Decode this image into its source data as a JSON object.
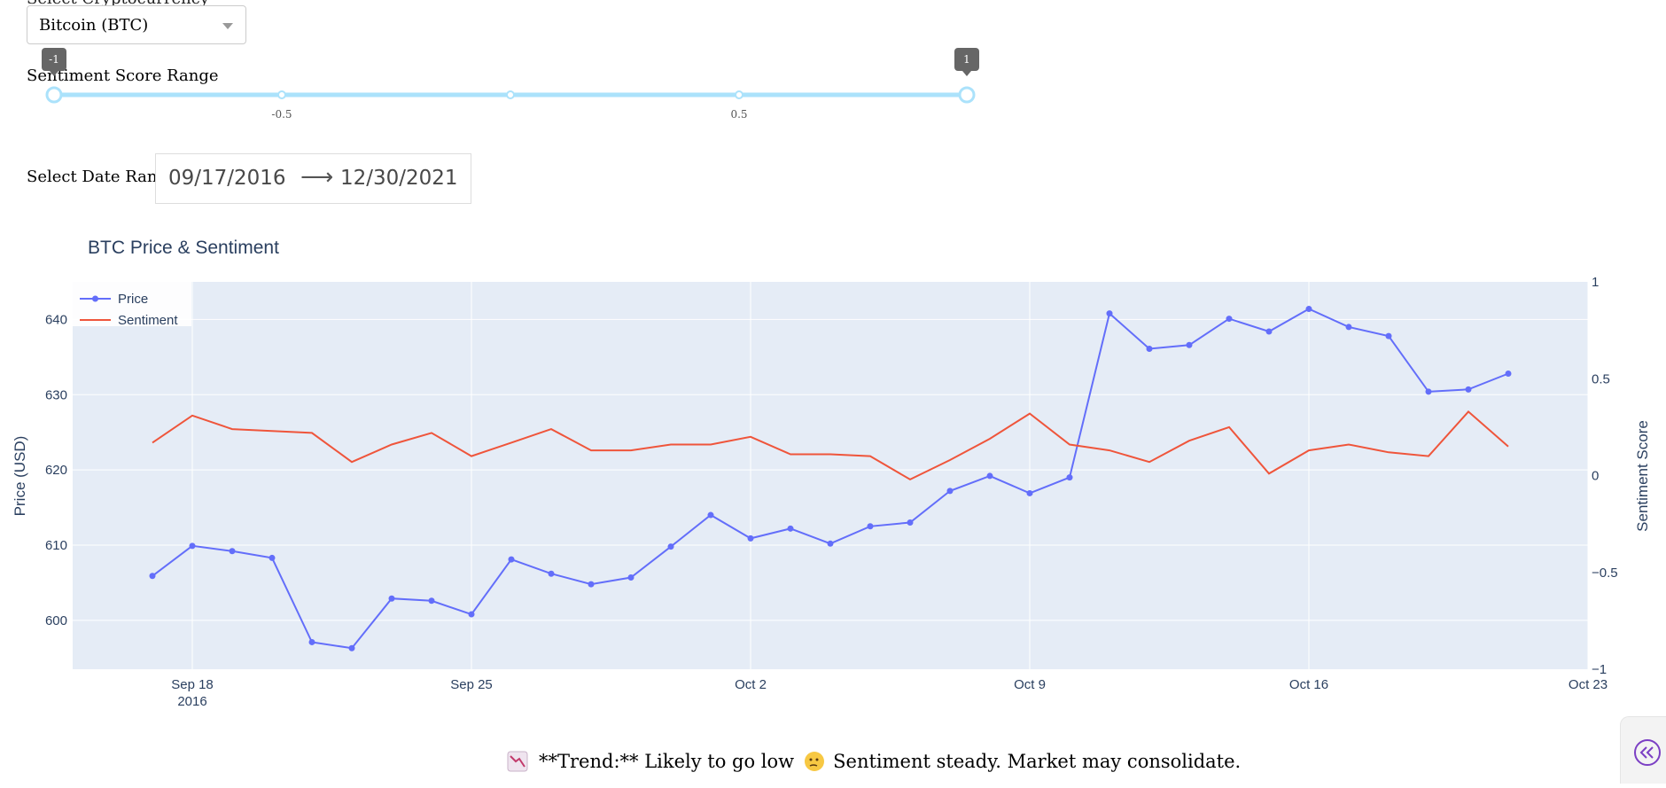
{
  "controls": {
    "crypto_label": "Select Cryptocurrency",
    "crypto_selected": "Bitcoin (BTC)",
    "sentiment_label": "Sentiment Score Range",
    "sentiment_range": {
      "min": -1,
      "max": 1,
      "low": -1,
      "high": 1
    },
    "slider_marks": [
      "-0.5",
      "0.5"
    ],
    "tooltip_low": "-1",
    "tooltip_high": "1",
    "date_label": "Select Date Range",
    "date_start": "09/17/2016",
    "date_end": "12/30/2021",
    "date_arrow": "⟶"
  },
  "chart_data": {
    "type": "line",
    "title": "BTC Price & Sentiment",
    "ylabel": "Price (USD)",
    "y2label": "Sentiment Score",
    "ylim": [
      593.5,
      645
    ],
    "y2lim": [
      -1,
      1
    ],
    "xlim": [
      "2016-09-15",
      "2016-10-23"
    ],
    "x_ticks": [
      "Sep 18",
      "Sep 25",
      "Oct 2",
      "Oct 9",
      "Oct 16",
      "Oct 23"
    ],
    "x_tick_year": "2016",
    "y_ticks": [
      "600",
      "610",
      "620",
      "630",
      "640"
    ],
    "y2_ticks": [
      "−1",
      "−0.5",
      "0",
      "0.5",
      "1"
    ],
    "legend_position": "top-left",
    "series": [
      {
        "name": "Price",
        "axis": "left",
        "color": "#636efa",
        "markers": true,
        "x": [
          "2016-09-17",
          "2016-09-18",
          "2016-09-19",
          "2016-09-20",
          "2016-09-21",
          "2016-09-22",
          "2016-09-23",
          "2016-09-24",
          "2016-09-25",
          "2016-09-26",
          "2016-09-27",
          "2016-09-28",
          "2016-09-29",
          "2016-09-30",
          "2016-10-01",
          "2016-10-02",
          "2016-10-03",
          "2016-10-04",
          "2016-10-05",
          "2016-10-06",
          "2016-10-07",
          "2016-10-08",
          "2016-10-09",
          "2016-10-10",
          "2016-10-11",
          "2016-10-12",
          "2016-10-13",
          "2016-10-14",
          "2016-10-15",
          "2016-10-16",
          "2016-10-17",
          "2016-10-18",
          "2016-10-19",
          "2016-10-20",
          "2016-10-21"
        ],
        "values": [
          605.9,
          609.9,
          609.2,
          608.3,
          597.1,
          596.3,
          602.9,
          602.6,
          600.8,
          608.1,
          606.2,
          604.8,
          605.7,
          609.8,
          614.0,
          610.9,
          612.2,
          610.2,
          612.5,
          613.0,
          617.2,
          619.2,
          616.9,
          619.0,
          640.8,
          636.1,
          636.6,
          640.1,
          638.4,
          641.4,
          639.0,
          637.8,
          630.4,
          630.7,
          632.8
        ]
      },
      {
        "name": "Sentiment",
        "axis": "right",
        "color": "#ef553b",
        "markers": false,
        "x": [
          "2016-09-17",
          "2016-09-18",
          "2016-09-19",
          "2016-09-20",
          "2016-09-21",
          "2016-09-22",
          "2016-09-23",
          "2016-09-24",
          "2016-09-25",
          "2016-09-26",
          "2016-09-27",
          "2016-09-28",
          "2016-09-29",
          "2016-09-30",
          "2016-10-01",
          "2016-10-02",
          "2016-10-03",
          "2016-10-04",
          "2016-10-05",
          "2016-10-06",
          "2016-10-07",
          "2016-10-08",
          "2016-10-09",
          "2016-10-10",
          "2016-10-11",
          "2016-10-12",
          "2016-10-13",
          "2016-10-14",
          "2016-10-15",
          "2016-10-16",
          "2016-10-17",
          "2016-10-18",
          "2016-10-19",
          "2016-10-20",
          "2016-10-21"
        ],
        "values": [
          0.17,
          0.31,
          0.24,
          0.23,
          0.22,
          0.07,
          0.16,
          0.22,
          0.1,
          0.17,
          0.24,
          0.13,
          0.13,
          0.16,
          0.16,
          0.2,
          0.11,
          0.11,
          0.1,
          -0.02,
          0.08,
          0.19,
          0.32,
          0.16,
          0.13,
          0.07,
          0.18,
          0.25,
          0.01,
          0.13,
          0.16,
          0.12,
          0.1,
          0.33,
          0.15
        ]
      }
    ]
  },
  "summary": {
    "icon": "chart-decreasing-icon",
    "text_prefix": "**Trend:** Likely to go low",
    "face_icon": "thinking-face-icon",
    "text_suffix": "Sentiment steady. Market may consolidate."
  },
  "corner": {
    "icon": "double-chevron-left-icon"
  }
}
